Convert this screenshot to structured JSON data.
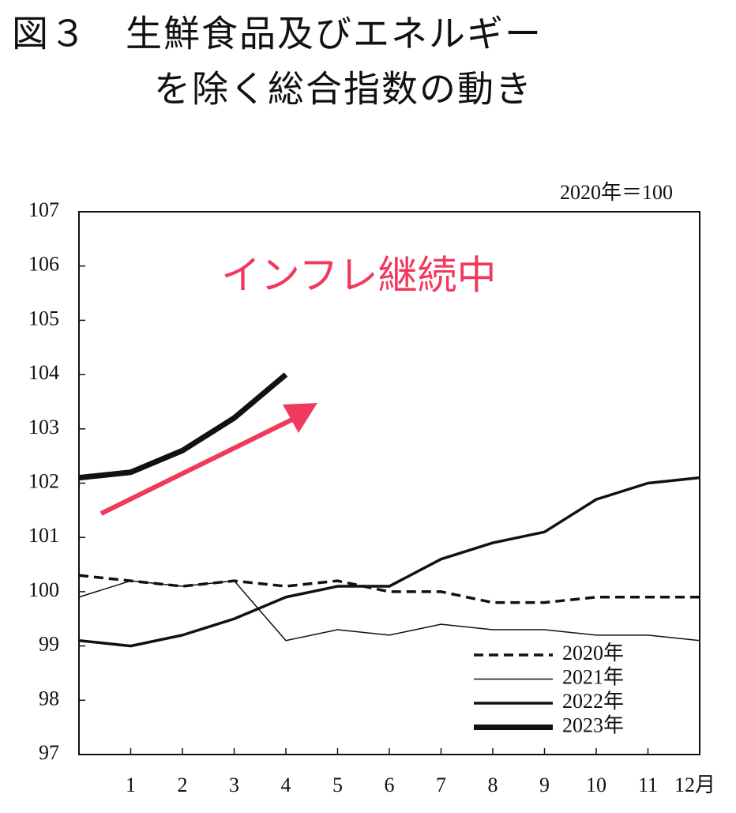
{
  "chart_data": {
    "type": "line",
    "title": [
      "図３　生鮮食品及びエネルギー",
      "を除く総合指数の動き"
    ],
    "unit_note": "2020年＝100",
    "annotation": "インフレ継続中",
    "annotation_color": "#ef3a5d",
    "x": [
      0,
      1,
      2,
      3,
      4,
      5,
      6,
      7,
      8,
      9,
      10,
      11,
      12
    ],
    "xlim": [
      0,
      12
    ],
    "xticks": [
      1,
      2,
      3,
      4,
      5,
      6,
      7,
      8,
      9,
      10,
      11,
      {
        "value": 12,
        "label": "12月"
      }
    ],
    "ylim": [
      97,
      107
    ],
    "yticks": [
      97,
      98,
      99,
      100,
      101,
      102,
      103,
      104,
      105,
      106,
      107
    ],
    "grid": false,
    "legend": "lower right",
    "series": [
      {
        "name": "2020年",
        "color": "#111111",
        "line_width": 3.5,
        "dashed": true,
        "values": [
          100.3,
          100.2,
          100.1,
          100.2,
          100.1,
          100.2,
          100.0,
          100.0,
          99.8,
          99.8,
          99.9,
          99.9,
          99.9
        ]
      },
      {
        "name": "2021年",
        "color": "#111111",
        "line_width": 1.5,
        "dashed": false,
        "values": [
          99.9,
          100.2,
          100.1,
          100.2,
          99.1,
          99.3,
          99.2,
          99.4,
          99.3,
          99.3,
          99.2,
          99.2,
          99.1
        ]
      },
      {
        "name": "2022年",
        "color": "#111111",
        "line_width": 3.5,
        "dashed": false,
        "values": [
          99.1,
          99.0,
          99.2,
          99.5,
          99.9,
          100.1,
          100.1,
          100.6,
          100.9,
          101.1,
          101.7,
          102.0,
          102.1
        ]
      },
      {
        "name": "2023年",
        "color": "#111111",
        "line_width": 7,
        "dashed": false,
        "values": [
          102.1,
          102.2,
          102.6,
          103.2,
          104.0,
          null,
          null,
          null,
          null,
          null,
          null,
          null,
          null
        ]
      }
    ]
  }
}
